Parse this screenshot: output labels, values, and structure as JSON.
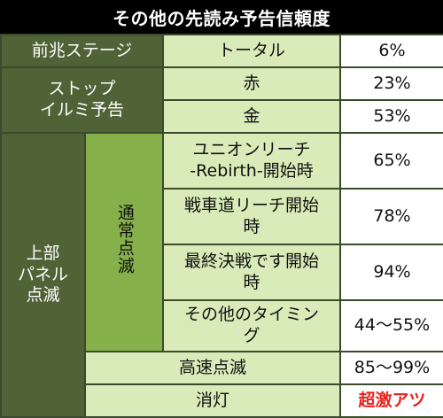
{
  "title": "その他の先読み予告信頼度",
  "rows": {
    "zencho_label": "前兆ステージ",
    "total_label": "トータル",
    "total_value": "6%",
    "stop_label": "ストップ\nイルミ予告",
    "aka_label": "赤",
    "aka_value": "23%",
    "kin_label": "金",
    "kin_value": "53%",
    "panel_label": "上部\nパネル\n点滅",
    "tsujo_label": "通常点滅",
    "union_label": "ユニオンリーチ\n-Rebirth-開始時",
    "union_value": "65%",
    "sensha_label": "戦車道リーチ開始\n時",
    "sensha_value": "78%",
    "saishu_label": "最終決戦です開始\n時",
    "saishu_value": "94%",
    "other_label": "その他のタイミン\nグ",
    "other_value": "44〜55%",
    "kosoku_label": "高速点滅",
    "kosoku_value": "85〜99%",
    "shoto_label": "消灯",
    "shoto_value": "超激アツ"
  },
  "colors": {
    "dark_green": "#4f6337",
    "mid_green": "#86b04a",
    "light_green": "#d9ebb8",
    "hot_red": "#e8221b"
  }
}
